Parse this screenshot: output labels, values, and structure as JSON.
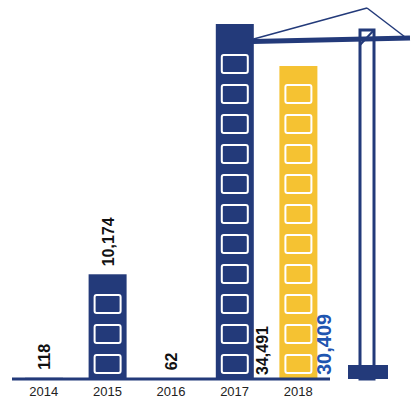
{
  "chart_data": {
    "type": "bar",
    "categories": [
      "2014",
      "2015",
      "2016",
      "2017",
      "2018"
    ],
    "values": [
      118,
      10174,
      62,
      34491,
      30409
    ],
    "value_labels": [
      "118",
      "10,174",
      "62",
      "34,491",
      "30,409"
    ],
    "colors": [
      "#233a7a",
      "#233a7a",
      "#233a7a",
      "#233a7a",
      "#f5c232"
    ],
    "data_labels": true,
    "tick_labels": "x",
    "grid": false
  }
}
